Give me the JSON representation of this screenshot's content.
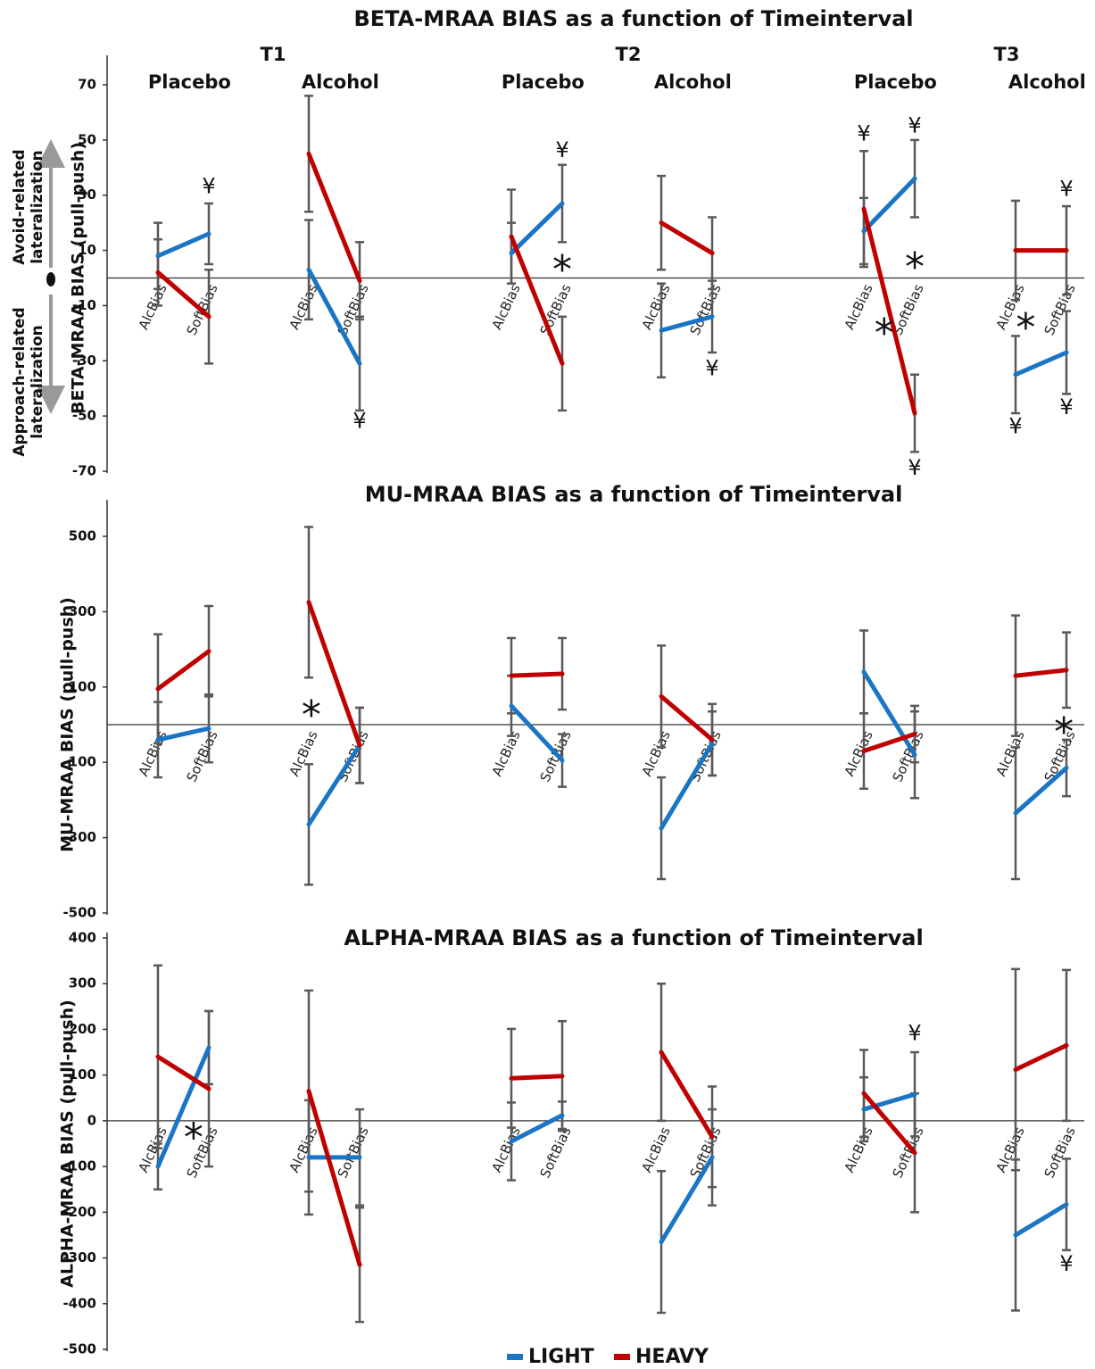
{
  "chart_data": [
    {
      "type": "line",
      "title": "BETA-MRAA BIAS as a function of Timeinterval",
      "ylabel": "BETA-MRAA BIAS (pull-push)",
      "side_labels": [
        [
          "Avoid-related",
          "lateralization"
        ],
        [
          "Approach-related",
          "lateralization"
        ]
      ],
      "time_labels": [
        "T1",
        "T2",
        "T3"
      ],
      "group_labels": [
        "Placebo",
        "Alcohol",
        "Placebo",
        "Alcohol",
        "Placebo",
        "Alcohol"
      ],
      "categories": [
        "AlcBias",
        "SoftBias",
        "AlcBias",
        "SoftBias",
        "AlcBias",
        "SoftBias",
        "AlcBias",
        "SoftBias",
        "AlcBias",
        "SoftBias",
        "AlcBias",
        "SoftBias"
      ],
      "ylim": [
        -70,
        70
      ],
      "yticks": [
        70,
        50,
        30,
        10,
        -10,
        -30,
        -50,
        -70
      ],
      "series": [
        {
          "color": "#1a75c4",
          "values": [
            8,
            16,
            3,
            -31,
            9,
            27,
            -19,
            -14,
            17,
            36,
            -35,
            -27
          ],
          "errors": [
            12,
            11,
            18,
            17,
            11,
            14,
            17,
            13,
            12,
            14,
            14,
            15
          ]
        },
        {
          "color": "#c00000",
          "values": [
            2,
            -14,
            45,
            -1,
            15,
            -31,
            20,
            9,
            25,
            -49,
            10,
            10
          ],
          "errors": [
            12,
            17,
            21,
            14,
            17,
            17,
            17,
            13,
            21,
            14,
            18,
            16
          ]
        }
      ],
      "annotations": [
        {
          "text": "¥",
          "x": 1,
          "y": 33
        },
        {
          "text": "¥",
          "x": 3,
          "y": -52
        },
        {
          "text": "*",
          "x": 5,
          "y": 5
        },
        {
          "text": "¥",
          "x": 5,
          "y": 46
        },
        {
          "text": "¥",
          "x": 7,
          "y": -33
        },
        {
          "text": "¥",
          "x": 8,
          "y": 52
        },
        {
          "text": "¥",
          "x": 9,
          "y": 55
        },
        {
          "text": "*",
          "x": 9,
          "y": 6
        },
        {
          "text": "*",
          "x": 8.4,
          "y": -18
        },
        {
          "text": "¥",
          "x": 9,
          "y": -69
        },
        {
          "text": "*",
          "x": 10.2,
          "y": -16
        },
        {
          "text": "¥",
          "x": 11,
          "y": 32
        },
        {
          "text": "¥",
          "x": 10,
          "y": -54
        },
        {
          "text": "¥",
          "x": 11,
          "y": -47
        }
      ]
    },
    {
      "type": "line",
      "title": "MU-MRAA BIAS as a function of Timeinterval",
      "ylabel": "MU-MRAA BIAS (pull-push)",
      "categories": [
        "AlcBias",
        "SoftBias",
        "AlcBias",
        "SoftBias",
        "AlcBias",
        "SoftBias",
        "AlcBias",
        "SoftBias",
        "AlcBias",
        "SoftBias",
        "AlcBias",
        "SoftBias"
      ],
      "ylim": [
        -500,
        500
      ],
      "yticks": [
        500,
        300,
        100,
        -100,
        -300,
        -500
      ],
      "series": [
        {
          "color": "#1a75c4",
          "values": [
            -40,
            -10,
            -265,
            -55,
            50,
            -95,
            -275,
            -50,
            140,
            -80,
            -235,
            -115
          ],
          "errors": [
            100,
            90,
            160,
            100,
            80,
            70,
            135,
            85,
            110,
            115,
            175,
            75
          ]
        },
        {
          "color": "#c00000",
          "values": [
            95,
            195,
            325,
            -55,
            130,
            135,
            75,
            -40,
            -70,
            -25,
            130,
            145
          ],
          "errors": [
            145,
            120,
            200,
            100,
            100,
            95,
            135,
            95,
            100,
            75,
            160,
            100
          ]
        }
      ],
      "annotations": [
        {
          "text": "*",
          "x": 2.05,
          "y": 40
        },
        {
          "text": "*",
          "x": 10.95,
          "y": -5
        }
      ]
    },
    {
      "type": "line",
      "title": "ALPHA-MRAA BIAS as a function of Timeinterval",
      "ylabel": "ALPHA-MRAA BIAS (pull-push)",
      "categories": [
        "AlcBias",
        "SoftBias",
        "AlcBias",
        "SoftBias",
        "AlcBias",
        "SoftBias",
        "AlcBias",
        "SoftBias",
        "AlcBias",
        "SoftBias",
        "AlcBias",
        "SoftBias"
      ],
      "ylim": [
        -500,
        400
      ],
      "yticks": [
        400,
        300,
        200,
        100,
        0,
        -100,
        -200,
        -300,
        -400,
        -500
      ],
      "series": [
        {
          "name": "LIGHT",
          "color": "#1a75c4",
          "values": [
            -100,
            160,
            -80,
            -80,
            -45,
            12,
            -265,
            -80,
            25,
            58,
            -250,
            -183
          ],
          "errors": [
            50,
            80,
            125,
            105,
            85,
            30,
            155,
            105,
            70,
            92,
            165,
            100
          ]
        },
        {
          "name": "HEAVY",
          "color": "#c00000",
          "values": [
            140,
            70,
            65,
            -315,
            93,
            98,
            150,
            -35,
            60,
            -70,
            112,
            165
          ],
          "errors": [
            200,
            170,
            220,
            125,
            108,
            120,
            150,
            110,
            95,
            130,
            220,
            165
          ]
        }
      ],
      "annotations": [
        {
          "text": "*",
          "x": 0.7,
          "y": -25
        },
        {
          "text": "¥",
          "x": 9,
          "y": 190
        },
        {
          "text": "¥",
          "x": 11,
          "y": -315
        }
      ]
    }
  ]
}
